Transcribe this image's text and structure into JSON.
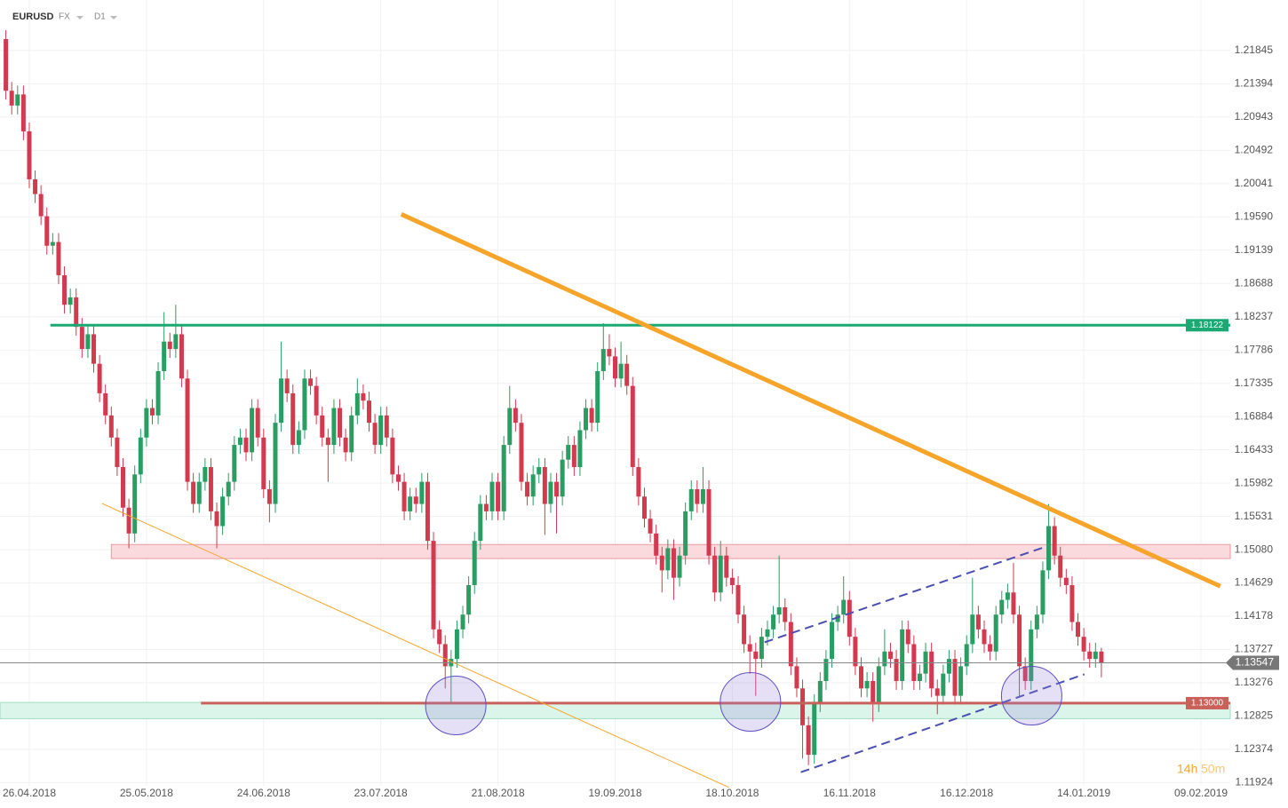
{
  "header": {
    "symbol": "EURUSD",
    "market": "FX",
    "interval": "D1"
  },
  "timer": {
    "hours": "14h",
    "minutes": "50m"
  },
  "chart_data": {
    "type": "candlestick",
    "up_color": "#2a9d63",
    "down_color": "#d23a4f",
    "xlim": [
      -1,
      209
    ],
    "xticks": [
      {
        "value": 4,
        "label": "26.04.2018"
      },
      {
        "value": 24,
        "label": "25.05.2018"
      },
      {
        "value": 44,
        "label": "24.06.2018"
      },
      {
        "value": 64,
        "label": "23.07.2018"
      },
      {
        "value": 84,
        "label": "21.08.2018"
      },
      {
        "value": 104,
        "label": "19.09.2018"
      },
      {
        "value": 124,
        "label": "18.10.2018"
      },
      {
        "value": 144,
        "label": "16.11.2018"
      },
      {
        "value": 164,
        "label": "16.12.2018"
      },
      {
        "value": 184,
        "label": "14.01.2019"
      },
      {
        "value": 204,
        "label": "09.02.2019"
      }
    ],
    "ylim": [
      1.1188,
      1.2253
    ],
    "yticks": [
      1.21845,
      1.21394,
      1.20943,
      1.20492,
      1.20041,
      {
        "value": 1.1959,
        "label": "1.19590"
      },
      1.19139,
      1.18688,
      1.18237,
      1.17786,
      1.17335,
      1.16884,
      1.16433,
      1.15982,
      1.15531,
      {
        "value": 1.1508,
        "label": "1.15080"
      },
      1.14629,
      1.14178,
      1.13727,
      1.13276,
      1.12825,
      1.12374,
      1.11924
    ],
    "grid": true,
    "candles": [
      [
        1.22,
        1.2212,
        1.2118,
        1.213
      ],
      [
        1.213,
        1.2142,
        1.2098,
        1.211
      ],
      [
        1.211,
        1.2137,
        1.2098,
        1.2125
      ],
      [
        1.2125,
        1.2137,
        1.2063,
        1.2075
      ],
      [
        1.2075,
        1.2087,
        1.1998,
        1.201
      ],
      [
        1.201,
        1.2022,
        1.1978,
        1.199
      ],
      [
        1.199,
        1.2002,
        1.1948,
        1.196
      ],
      [
        1.196,
        1.1972,
        1.1908,
        1.192
      ],
      [
        1.192,
        1.1937,
        1.1908,
        1.1925
      ],
      [
        1.1925,
        1.1937,
        1.1868,
        1.188
      ],
      [
        1.188,
        1.1892,
        1.1828,
        1.184
      ],
      [
        1.184,
        1.1862,
        1.1828,
        1.185
      ],
      [
        1.185,
        1.1862,
        1.1798,
        1.181
      ],
      [
        1.181,
        1.1822,
        1.1768,
        1.178
      ],
      [
        1.178,
        1.1812,
        1.1768,
        1.18
      ],
      [
        1.18,
        1.1812,
        1.1748,
        1.176
      ],
      [
        1.176,
        1.1772,
        1.1708,
        1.172
      ],
      [
        1.172,
        1.1732,
        1.1678,
        1.169
      ],
      [
        1.169,
        1.1702,
        1.1648,
        1.166
      ],
      [
        1.166,
        1.1672,
        1.1608,
        1.162
      ],
      [
        1.162,
        1.1632,
        1.1553,
        1.1565
      ],
      [
        1.1565,
        1.1577,
        1.151,
        1.153
      ],
      [
        1.153,
        1.1622,
        1.1518,
        1.161
      ],
      [
        1.161,
        1.1672,
        1.1598,
        1.166
      ],
      [
        1.166,
        1.1712,
        1.1648,
        1.17
      ],
      [
        1.17,
        1.1712,
        1.1678,
        1.169
      ],
      [
        1.169,
        1.1762,
        1.1678,
        1.175
      ],
      [
        1.175,
        1.183,
        1.1738,
        1.179
      ],
      [
        1.179,
        1.1802,
        1.1768,
        1.178
      ],
      [
        1.178,
        1.184,
        1.1768,
        1.18
      ],
      [
        1.18,
        1.1812,
        1.1728,
        1.174
      ],
      [
        1.174,
        1.1752,
        1.1588,
        1.16
      ],
      [
        1.16,
        1.1612,
        1.1558,
        1.157
      ],
      [
        1.157,
        1.1612,
        1.1558,
        1.16
      ],
      [
        1.16,
        1.1632,
        1.1588,
        1.162
      ],
      [
        1.162,
        1.1632,
        1.1548,
        1.156
      ],
      [
        1.156,
        1.1572,
        1.151,
        1.154
      ],
      [
        1.154,
        1.1592,
        1.1528,
        1.158
      ],
      [
        1.158,
        1.1612,
        1.1568,
        1.16
      ],
      [
        1.16,
        1.1662,
        1.1588,
        1.165
      ],
      [
        1.165,
        1.1672,
        1.1638,
        1.166
      ],
      [
        1.166,
        1.1672,
        1.1628,
        1.164
      ],
      [
        1.164,
        1.1712,
        1.1628,
        1.17
      ],
      [
        1.17,
        1.1712,
        1.1648,
        1.166
      ],
      [
        1.166,
        1.1672,
        1.1578,
        1.159
      ],
      [
        1.159,
        1.1602,
        1.1545,
        1.157
      ],
      [
        1.157,
        1.1692,
        1.1558,
        1.168
      ],
      [
        1.168,
        1.179,
        1.1668,
        1.174
      ],
      [
        1.174,
        1.1752,
        1.1708,
        1.172
      ],
      [
        1.172,
        1.1732,
        1.1638,
        1.165
      ],
      [
        1.165,
        1.1682,
        1.1638,
        1.167
      ],
      [
        1.167,
        1.1752,
        1.1658,
        1.174
      ],
      [
        1.174,
        1.1752,
        1.1718,
        1.173
      ],
      [
        1.173,
        1.1742,
        1.1678,
        1.169
      ],
      [
        1.169,
        1.1702,
        1.1648,
        1.166
      ],
      [
        1.166,
        1.1672,
        1.16,
        1.165
      ],
      [
        1.165,
        1.1712,
        1.1638,
        1.17
      ],
      [
        1.17,
        1.1712,
        1.1648,
        1.166
      ],
      [
        1.166,
        1.1672,
        1.1628,
        1.164
      ],
      [
        1.164,
        1.1702,
        1.1628,
        1.169
      ],
      [
        1.169,
        1.174,
        1.1678,
        1.172
      ],
      [
        1.172,
        1.1732,
        1.1698,
        1.171
      ],
      [
        1.171,
        1.1722,
        1.1668,
        1.168
      ],
      [
        1.168,
        1.1692,
        1.1638,
        1.165
      ],
      [
        1.165,
        1.1702,
        1.1638,
        1.169
      ],
      [
        1.169,
        1.1702,
        1.1648,
        1.166
      ],
      [
        1.166,
        1.1672,
        1.1598,
        1.161
      ],
      [
        1.161,
        1.1622,
        1.1588,
        1.16
      ],
      [
        1.16,
        1.1612,
        1.1548,
        1.156
      ],
      [
        1.156,
        1.1592,
        1.1548,
        1.158
      ],
      [
        1.158,
        1.1592,
        1.1558,
        1.157
      ],
      [
        1.157,
        1.1612,
        1.1558,
        1.16
      ],
      [
        1.16,
        1.1612,
        1.1508,
        1.152
      ],
      [
        1.152,
        1.1532,
        1.1388,
        1.14
      ],
      [
        1.14,
        1.1412,
        1.1368,
        1.138
      ],
      [
        1.138,
        1.1392,
        1.132,
        1.135
      ],
      [
        1.135,
        1.1372,
        1.13,
        1.136
      ],
      [
        1.136,
        1.1412,
        1.1348,
        1.14
      ],
      [
        1.14,
        1.1432,
        1.1388,
        1.142
      ],
      [
        1.142,
        1.1472,
        1.1408,
        1.146
      ],
      [
        1.146,
        1.1532,
        1.1448,
        1.152
      ],
      [
        1.152,
        1.1582,
        1.1508,
        1.157
      ],
      [
        1.157,
        1.1582,
        1.1548,
        1.156
      ],
      [
        1.156,
        1.1612,
        1.1548,
        1.16
      ],
      [
        1.16,
        1.1612,
        1.1548,
        1.156
      ],
      [
        1.156,
        1.1662,
        1.1548,
        1.165
      ],
      [
        1.165,
        1.173,
        1.1638,
        1.17
      ],
      [
        1.17,
        1.1712,
        1.1668,
        1.168
      ],
      [
        1.168,
        1.1692,
        1.1588,
        1.16
      ],
      [
        1.16,
        1.1612,
        1.1568,
        1.158
      ],
      [
        1.158,
        1.1622,
        1.1568,
        1.161
      ],
      [
        1.161,
        1.1632,
        1.1598,
        1.162
      ],
      [
        1.162,
        1.1632,
        1.1528,
        1.157
      ],
      [
        1.157,
        1.1612,
        1.1558,
        1.16
      ],
      [
        1.16,
        1.1612,
        1.153,
        1.158
      ],
      [
        1.158,
        1.1642,
        1.1568,
        1.163
      ],
      [
        1.163,
        1.1662,
        1.1618,
        1.165
      ],
      [
        1.165,
        1.1662,
        1.1608,
        1.162
      ],
      [
        1.162,
        1.1682,
        1.1608,
        1.167
      ],
      [
        1.167,
        1.1712,
        1.1658,
        1.17
      ],
      [
        1.17,
        1.1712,
        1.1668,
        1.168
      ],
      [
        1.168,
        1.1762,
        1.1668,
        1.175
      ],
      [
        1.175,
        1.1815,
        1.1738,
        1.178
      ],
      [
        1.178,
        1.18,
        1.1758,
        1.177
      ],
      [
        1.177,
        1.1782,
        1.1728,
        1.174
      ],
      [
        1.174,
        1.179,
        1.1728,
        1.176
      ],
      [
        1.176,
        1.1772,
        1.1718,
        1.173
      ],
      [
        1.173,
        1.1742,
        1.1608,
        1.162
      ],
      [
        1.162,
        1.1632,
        1.1568,
        1.158
      ],
      [
        1.158,
        1.1592,
        1.1538,
        1.155
      ],
      [
        1.155,
        1.1562,
        1.1518,
        1.153
      ],
      [
        1.153,
        1.1542,
        1.1488,
        1.15
      ],
      [
        1.15,
        1.1512,
        1.145,
        1.148
      ],
      [
        1.148,
        1.1522,
        1.1468,
        1.151
      ],
      [
        1.151,
        1.1522,
        1.144,
        1.147
      ],
      [
        1.147,
        1.1512,
        1.1458,
        1.15
      ],
      [
        1.15,
        1.1572,
        1.1488,
        1.156
      ],
      [
        1.156,
        1.1602,
        1.1548,
        1.159
      ],
      [
        1.159,
        1.1602,
        1.1558,
        1.157
      ],
      [
        1.157,
        1.162,
        1.1558,
        1.159
      ],
      [
        1.159,
        1.1602,
        1.1488,
        1.15
      ],
      [
        1.15,
        1.1512,
        1.1438,
        1.145
      ],
      [
        1.145,
        1.152,
        1.1438,
        1.15
      ],
      [
        1.15,
        1.1512,
        1.1458,
        1.147
      ],
      [
        1.147,
        1.1482,
        1.1448,
        1.146
      ],
      [
        1.146,
        1.1472,
        1.1408,
        1.142
      ],
      [
        1.142,
        1.1432,
        1.1368,
        1.138
      ],
      [
        1.138,
        1.1392,
        1.134,
        1.137
      ],
      [
        1.137,
        1.1382,
        1.131,
        1.136
      ],
      [
        1.136,
        1.1402,
        1.1348,
        1.139
      ],
      [
        1.139,
        1.1412,
        1.1378,
        1.14
      ],
      [
        1.14,
        1.1432,
        1.1388,
        1.142
      ],
      [
        1.142,
        1.15,
        1.1408,
        1.143
      ],
      [
        1.143,
        1.1442,
        1.1398,
        1.141
      ],
      [
        1.141,
        1.1422,
        1.1338,
        1.135
      ],
      [
        1.135,
        1.1362,
        1.1308,
        1.132
      ],
      [
        1.132,
        1.1332,
        1.1225,
        1.127
      ],
      [
        1.127,
        1.1282,
        1.1216,
        1.123
      ],
      [
        1.123,
        1.1312,
        1.1218,
        1.13
      ],
      [
        1.13,
        1.1342,
        1.1288,
        1.133
      ],
      [
        1.133,
        1.1372,
        1.1318,
        1.136
      ],
      [
        1.136,
        1.1422,
        1.1348,
        1.141
      ],
      [
        1.141,
        1.1432,
        1.1398,
        1.142
      ],
      [
        1.142,
        1.1472,
        1.1408,
        1.144
      ],
      [
        1.144,
        1.1452,
        1.1378,
        1.139
      ],
      [
        1.139,
        1.1402,
        1.1338,
        1.135
      ],
      [
        1.135,
        1.1362,
        1.1308,
        1.132
      ],
      [
        1.132,
        1.1342,
        1.1308,
        1.133
      ],
      [
        1.133,
        1.1342,
        1.1275,
        1.13
      ],
      [
        1.13,
        1.1362,
        1.1288,
        1.135
      ],
      [
        1.135,
        1.14,
        1.1338,
        1.137
      ],
      [
        1.137,
        1.1382,
        1.1348,
        1.136
      ],
      [
        1.136,
        1.1372,
        1.1318,
        1.133
      ],
      [
        1.133,
        1.1412,
        1.1318,
        1.14
      ],
      [
        1.14,
        1.1412,
        1.1368,
        1.138
      ],
      [
        1.138,
        1.1392,
        1.1318,
        1.133
      ],
      [
        1.133,
        1.1352,
        1.1318,
        1.134
      ],
      [
        1.134,
        1.1382,
        1.1328,
        1.137
      ],
      [
        1.137,
        1.1382,
        1.1308,
        1.132
      ],
      [
        1.132,
        1.1332,
        1.1285,
        1.131
      ],
      [
        1.131,
        1.1352,
        1.1298,
        1.134
      ],
      [
        1.134,
        1.1372,
        1.1328,
        1.136
      ],
      [
        1.136,
        1.1372,
        1.1298,
        1.131
      ],
      [
        1.131,
        1.1362,
        1.1298,
        1.135
      ],
      [
        1.135,
        1.1392,
        1.1338,
        1.138
      ],
      [
        1.138,
        1.147,
        1.1368,
        1.142
      ],
      [
        1.142,
        1.1432,
        1.1388,
        1.14
      ],
      [
        1.14,
        1.1412,
        1.1368,
        1.138
      ],
      [
        1.138,
        1.1392,
        1.1358,
        1.137
      ],
      [
        1.137,
        1.1432,
        1.1358,
        1.142
      ],
      [
        1.142,
        1.1452,
        1.1408,
        1.144
      ],
      [
        1.144,
        1.1462,
        1.1428,
        1.145
      ],
      [
        1.145,
        1.149,
        1.1408,
        1.142
      ],
      [
        1.142,
        1.1432,
        1.131,
        1.135
      ],
      [
        1.135,
        1.1362,
        1.1318,
        1.133
      ],
      [
        1.133,
        1.1412,
        1.1318,
        1.14
      ],
      [
        1.14,
        1.1432,
        1.1388,
        1.142
      ],
      [
        1.142,
        1.1492,
        1.1408,
        1.148
      ],
      [
        1.148,
        1.157,
        1.1468,
        1.154
      ],
      [
        1.154,
        1.1552,
        1.1488,
        1.15
      ],
      [
        1.15,
        1.1512,
        1.1458,
        1.147
      ],
      [
        1.147,
        1.1482,
        1.1448,
        1.146
      ],
      [
        1.146,
        1.1472,
        1.1398,
        1.141
      ],
      [
        1.141,
        1.1422,
        1.1378,
        1.139
      ],
      [
        1.139,
        1.1402,
        1.1358,
        1.137
      ],
      [
        1.137,
        1.1382,
        1.1348,
        1.136
      ],
      [
        1.136,
        1.1382,
        1.1348,
        1.137
      ],
      [
        1.137,
        1.1375,
        1.1335,
        1.1355
      ]
    ],
    "zones": [
      {
        "from": 1.1496,
        "to": 1.1515,
        "start": 18,
        "fill": "#fadadd",
        "stroke": "#e79aa2"
      },
      {
        "from": 1.1279,
        "to": 1.1301,
        "start": -1,
        "fill": "#dcf5ea",
        "stroke": "#9fdcc0"
      }
    ],
    "levels": [
      {
        "value": 1.18122,
        "label": "1.18122",
        "start": 7.6,
        "color": "#1aa873",
        "style": "thick"
      },
      {
        "value": 1.13547,
        "label": "1.13547",
        "start": -1,
        "color": "#888888",
        "style": "thin"
      },
      {
        "value": 1.13,
        "label": "1.13000",
        "start": 33.3,
        "color": "#c9605a",
        "style": "thick"
      }
    ],
    "trendlines": [
      {
        "points": [
          [
            67.5,
            1.19626
          ],
          [
            207.3,
            1.14585
          ]
        ],
        "color": "#f6a52a",
        "style": "thick"
      },
      {
        "points": [
          [
            16.4,
            1.15707
          ],
          [
            123.4,
            1.1186
          ]
        ],
        "color": "#f6a52a",
        "style": "thin"
      },
      {
        "points": [
          [
            129.5,
            1.13825
          ],
          [
            177.3,
            1.15115
          ]
        ],
        "color": "#4a4fb0",
        "style": "dashed"
      },
      {
        "points": [
          [
            135.7,
            1.12064
          ],
          [
            184.1,
            1.13391
          ]
        ],
        "color": "#4a4fb0",
        "style": "dashed"
      }
    ],
    "circles": [
      {
        "x": 76.8,
        "y": 1.12969
      },
      {
        "x": 127.1,
        "y": 1.13017
      },
      {
        "x": 175.1,
        "y": 1.13101
      }
    ]
  }
}
